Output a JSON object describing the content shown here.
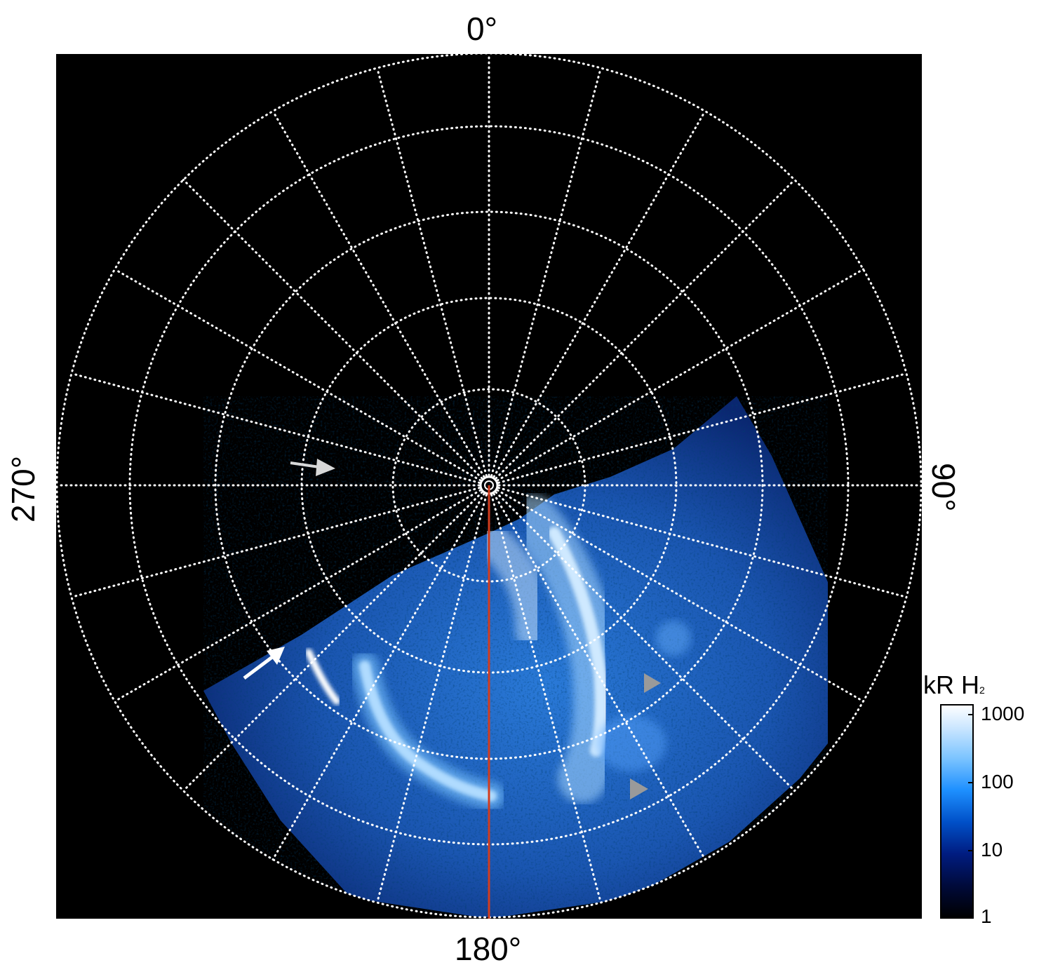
{
  "azimuth_labels": {
    "top": "0°",
    "right": "90°",
    "bottom": "180°",
    "left": "270°"
  },
  "colorbar": {
    "title": "kR H",
    "title_subscript": "2",
    "scale": "log",
    "ticks": [
      "1000",
      "100",
      "10",
      "1"
    ],
    "colors": [
      "#000000",
      "#000a3a",
      "#001c80",
      "#0050c8",
      "#1e90ff",
      "#7cc4ff",
      "#cfe8ff",
      "#ffffff"
    ]
  },
  "colors": {
    "background": "#000000",
    "grid": "#ffffff",
    "meridian_line": "#d23c1e",
    "arrow_white": "#ffffff",
    "arrow_light_grey": "#d8d8d8",
    "arrowhead_grey": "#9a9a9a"
  },
  "markers": [
    "white-arrow",
    "light-grey-arrow",
    "grey-arrowhead-upper",
    "grey-arrowhead-lower"
  ]
}
